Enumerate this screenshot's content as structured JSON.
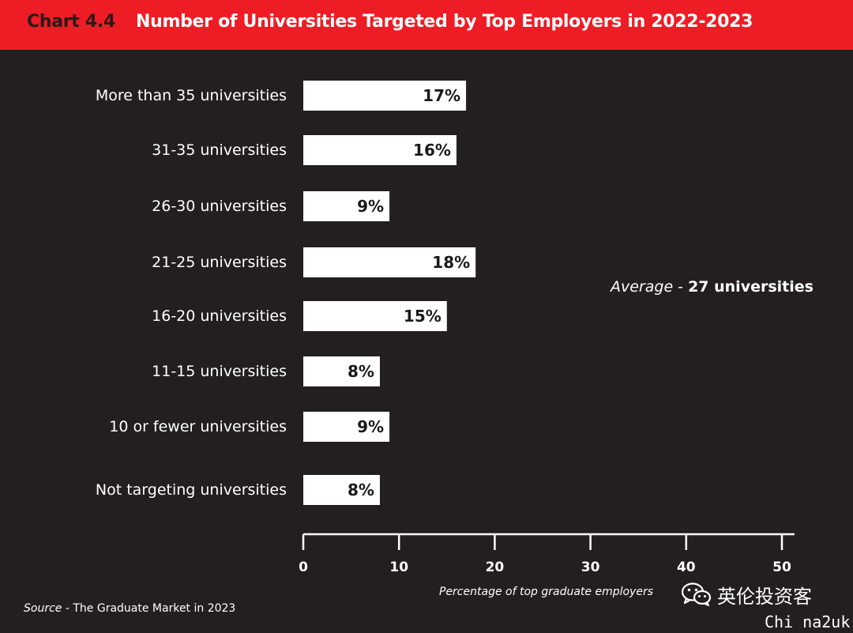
{
  "header": {
    "chart_label": "Chart 4.4",
    "title": "Number of Universities Targeted by Top Employers in 2022-2023"
  },
  "annotation": {
    "average_label": "Average",
    "separator": " - ",
    "average_value": "27 universities"
  },
  "source": {
    "label": "Source",
    "text": " - The Graduate Market in 2023"
  },
  "watermark": {
    "icon": "wechat-icon",
    "text": "英伦投资客",
    "subtext": "Chi na2uk"
  },
  "colors": {
    "background": "#231f20",
    "header": "#ee1c25",
    "bar": "#ffffff",
    "text": "#ffffff"
  },
  "chart_data": {
    "type": "bar",
    "orientation": "horizontal",
    "title": "Number of Universities Targeted by Top Employers in 2022-2023",
    "xlabel": "Percentage of top graduate employers",
    "ylabel": "",
    "xlim": [
      0,
      50
    ],
    "xticks": [
      0,
      10,
      20,
      30,
      40,
      50
    ],
    "categories": [
      "More than 35 universities",
      "31-35 universities",
      "26-30 universities",
      "21-25 universities",
      "16-20 universities",
      "11-15 universities",
      "10 or fewer universities",
      "Not targeting universities"
    ],
    "values": [
      17,
      16,
      9,
      18,
      15,
      8,
      9,
      8
    ],
    "value_labels": [
      "17%",
      "16%",
      "9%",
      "18%",
      "15%",
      "8%",
      "9%",
      "8%"
    ],
    "grid": false,
    "legend": "none"
  }
}
